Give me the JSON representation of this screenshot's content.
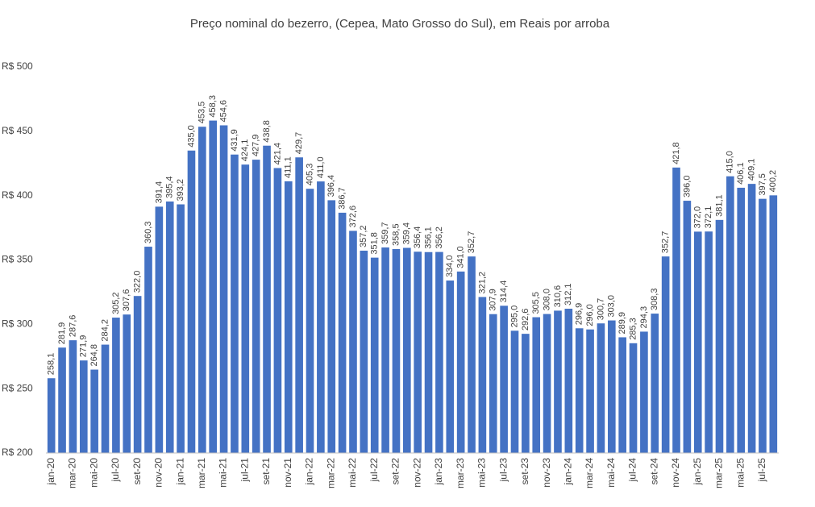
{
  "chart_data": {
    "type": "bar",
    "title": "Preço nominal do bezerro, (Cepea, Mato Grosso do Sul), em Reais por arroba",
    "categories": [
      "jan-20",
      null,
      "mar-20",
      null,
      "mai-20",
      null,
      "jul-20",
      null,
      "set-20",
      null,
      "nov-20",
      null,
      "jan-21",
      null,
      "mar-21",
      null,
      "mai-21",
      null,
      "jul-21",
      null,
      "set-21",
      null,
      "nov-21",
      null,
      "jan-22",
      null,
      "mar-22",
      null,
      "mai-22",
      null,
      "jul-22",
      null,
      "set-22",
      null,
      "nov-22",
      null,
      "jan-23",
      null,
      "mar-23",
      null,
      "mai-23",
      null,
      "jul-23",
      null,
      "set-23",
      null,
      "nov-23",
      null,
      "jan-24",
      null,
      "mar-24",
      null,
      "mai-24",
      null,
      "jul-24",
      null,
      "set-24",
      null,
      "nov-24",
      null,
      "jan-25",
      null,
      "mar-25",
      null,
      "mai-25",
      null,
      "jul-25",
      null
    ],
    "values": [
      258.1,
      281.9,
      287.6,
      271.9,
      264.8,
      284.2,
      305.2,
      307.6,
      322.0,
      360.3,
      391.4,
      395.4,
      393.2,
      435.0,
      453.5,
      458.3,
      454.6,
      431.9,
      424.1,
      427.9,
      438.8,
      421.4,
      411.1,
      429.7,
      405.3,
      411.0,
      396.4,
      386.7,
      372.6,
      357.2,
      351.8,
      359.7,
      358.5,
      359.4,
      356.4,
      356.1,
      356.2,
      334.0,
      341.0,
      352.7,
      321.2,
      307.9,
      314.4,
      295.0,
      292.6,
      305.5,
      308.0,
      310.6,
      312.1,
      296.9,
      296.0,
      300.7,
      303.0,
      289.9,
      285.3,
      294.3,
      308.3,
      352.7,
      421.8,
      396.0,
      372.0,
      372.1,
      381.1,
      415.0,
      406.1,
      409.1,
      397.5,
      400.2
    ],
    "value_labels": [
      "258,1",
      "281,9",
      "287,6",
      "271,9",
      "264,8",
      "284,2",
      "305,2",
      "307,6",
      "322,0",
      "360,3",
      "391,4",
      "395,4",
      "393,2",
      "435,0",
      "453,5",
      "458,3",
      "454,6",
      "431,9",
      "424,1",
      "427,9",
      "438,8",
      "421,4",
      "411,1",
      "429,7",
      "405,3",
      "411,0",
      "396,4",
      "386,7",
      "372,6",
      "357,2",
      "351,8",
      "359,7",
      "358,5",
      "359,4",
      "356,4",
      "356,1",
      "356,2",
      "334,0",
      "341,0",
      "352,7",
      "321,2",
      "307,9",
      "314,4",
      "295,0",
      "292,6",
      "305,5",
      "308,0",
      "310,6",
      "312,1",
      "296,9",
      "296,0",
      "300,7",
      "303,0",
      "289,9",
      "285,3",
      "294,3",
      "308,3",
      "352,7",
      "421,8",
      "396,0",
      "372,0",
      "372,1",
      "381,1",
      "415,0",
      "406,1",
      "409,1",
      "397,5",
      "400,2"
    ],
    "color": "#4472c4",
    "ylim": [
      200,
      500
    ],
    "yticks": [
      {
        "value": 200,
        "label": "R$ 200"
      },
      {
        "value": 250,
        "label": "R$ 250"
      },
      {
        "value": 300,
        "label": "R$ 300"
      },
      {
        "value": 350,
        "label": "R$ 350"
      },
      {
        "value": 400,
        "label": "R$ 400"
      },
      {
        "value": 450,
        "label": "R$ 450"
      },
      {
        "value": 500,
        "label": "R$ 500"
      }
    ],
    "grid": false
  }
}
